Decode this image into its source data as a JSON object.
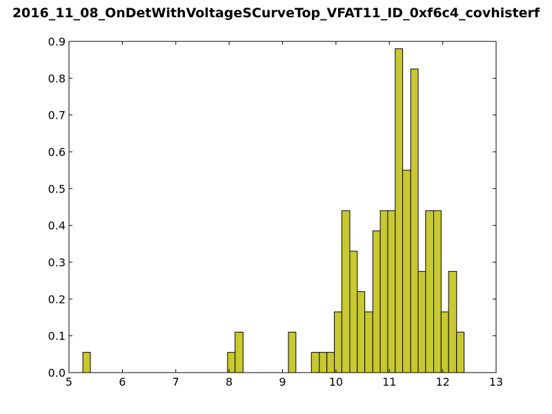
{
  "chart_data": {
    "type": "bar",
    "title": "2016_11_08_OnDetWithVoltageSCurveTop_VFAT11_ID_0xf6c4_covhisterf",
    "xlabel": "",
    "ylabel": "",
    "xlim": [
      5,
      13
    ],
    "ylim": [
      0,
      0.9
    ],
    "xticks": [
      "5",
      "6",
      "7",
      "8",
      "9",
      "10",
      "11",
      "12",
      "13"
    ],
    "yticks": [
      "0.0",
      "0.1",
      "0.2",
      "0.3",
      "0.4",
      "0.5",
      "0.6",
      "0.7",
      "0.8",
      "0.9"
    ],
    "grid": false,
    "bar_color": "#c8c832",
    "edge_color": "#000000",
    "bins": [
      {
        "x0": 5.26,
        "x1": 5.4,
        "value": 0.055
      },
      {
        "x0": 7.97,
        "x1": 8.11,
        "value": 0.055
      },
      {
        "x0": 8.11,
        "x1": 8.26,
        "value": 0.11
      },
      {
        "x0": 9.11,
        "x1": 9.25,
        "value": 0.11
      },
      {
        "x0": 9.54,
        "x1": 9.69,
        "value": 0.055
      },
      {
        "x0": 9.69,
        "x1": 9.83,
        "value": 0.055
      },
      {
        "x0": 9.83,
        "x1": 9.97,
        "value": 0.055
      },
      {
        "x0": 9.97,
        "x1": 10.11,
        "value": 0.165
      },
      {
        "x0": 10.11,
        "x1": 10.26,
        "value": 0.44
      },
      {
        "x0": 10.26,
        "x1": 10.4,
        "value": 0.33
      },
      {
        "x0": 10.4,
        "x1": 10.54,
        "value": 0.22
      },
      {
        "x0": 10.54,
        "x1": 10.69,
        "value": 0.165
      },
      {
        "x0": 10.69,
        "x1": 10.83,
        "value": 0.385
      },
      {
        "x0": 10.83,
        "x1": 10.97,
        "value": 0.44
      },
      {
        "x0": 10.97,
        "x1": 11.11,
        "value": 0.44
      },
      {
        "x0": 11.11,
        "x1": 11.25,
        "value": 0.88
      },
      {
        "x0": 11.25,
        "x1": 11.4,
        "value": 0.55
      },
      {
        "x0": 11.4,
        "x1": 11.54,
        "value": 0.825
      },
      {
        "x0": 11.54,
        "x1": 11.68,
        "value": 0.275
      },
      {
        "x0": 11.68,
        "x1": 11.83,
        "value": 0.44
      },
      {
        "x0": 11.83,
        "x1": 11.97,
        "value": 0.44
      },
      {
        "x0": 11.97,
        "x1": 12.11,
        "value": 0.165
      },
      {
        "x0": 12.11,
        "x1": 12.26,
        "value": 0.275
      },
      {
        "x0": 12.26,
        "x1": 12.4,
        "value": 0.11
      }
    ]
  }
}
